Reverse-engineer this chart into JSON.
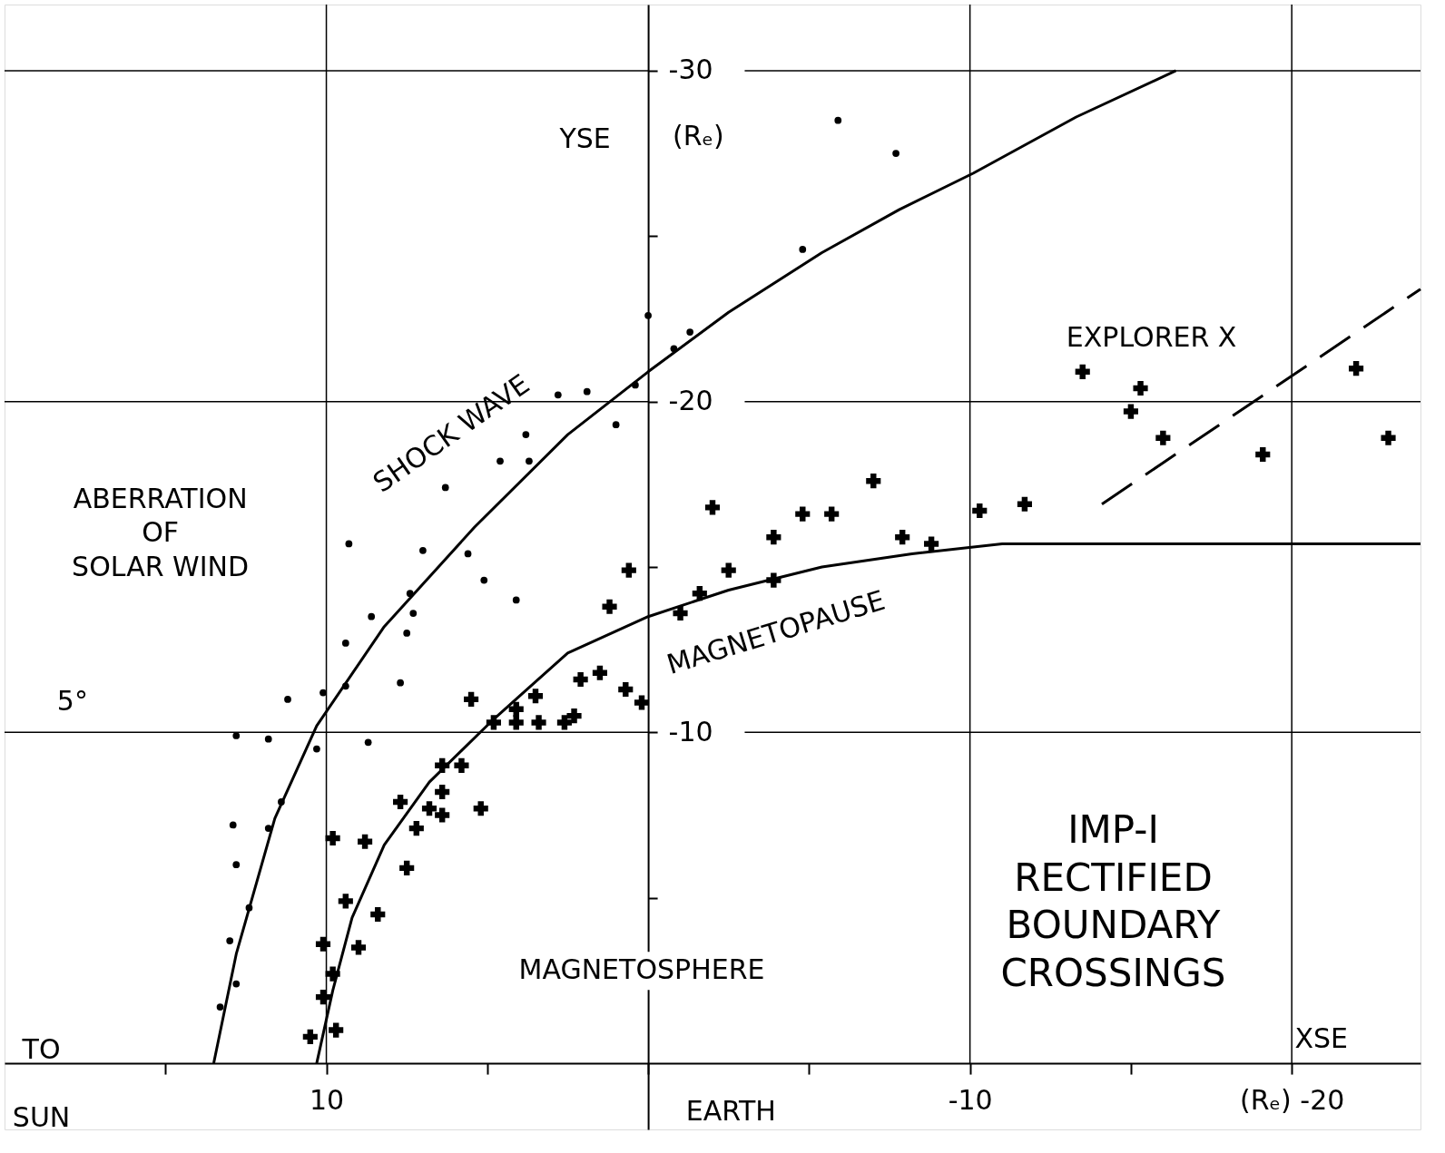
{
  "chart_data": {
    "type": "scatter",
    "xlabel": "XSE",
    "ylabel": "YSE",
    "xlim": [
      20,
      -24
    ],
    "ylim": [
      2,
      -32
    ],
    "xticks": [
      {
        "value": 15,
        "label": null
      },
      10,
      {
        "value": 5,
        "label": null
      },
      {
        "value": 0,
        "label": null
      },
      {
        "value": -5,
        "label": null
      },
      -10,
      {
        "value": -15,
        "label": null
      },
      {
        "value": -20,
        "label": "(Rₑ) -20"
      }
    ],
    "yticks": [
      -30,
      {
        "value": -25,
        "label": null
      },
      -20,
      {
        "value": -15,
        "label": null
      },
      -10,
      {
        "value": -5,
        "label": null
      }
    ],
    "grid": true,
    "series": [
      {
        "type": "scatter",
        "marker": "circle",
        "color": "#000000",
        "x": [
          -5.9,
          -7.7,
          -4.8,
          0,
          -1.3,
          -0.8,
          0.4,
          2.8,
          1.9,
          1.0,
          3.8,
          4.6,
          3.7,
          6.3,
          9.3,
          7.0,
          5.6,
          5.1,
          7.4,
          4.1,
          7.3,
          8.6,
          7.5,
          9.4,
          9.4,
          7.7,
          10.1,
          11.2,
          12.8,
          11.8,
          8.7,
          10.3,
          11.4,
          12.9,
          11.8,
          12.8,
          12.4,
          13.0,
          12.8,
          13.3
        ],
        "values": [
          -28.5,
          -27.5,
          -24.6,
          -22.6,
          -22.1,
          -21.6,
          -20.5,
          -20.2,
          -20.3,
          -19.3,
          -19.0,
          -18.2,
          -18.2,
          -17.4,
          -15.7,
          -15.5,
          -15.4,
          -14.6,
          -14.2,
          -14.0,
          -13.6,
          -13.5,
          -13.0,
          -12.7,
          -11.4,
          -11.5,
          -11.2,
          -11.0,
          -9.9,
          -9.8,
          -9.7,
          -9.5,
          -7.9,
          -7.2,
          -7.1,
          -6.0,
          -4.7,
          -3.7,
          -2.4,
          -1.7
        ]
      },
      {
        "type": "scatter",
        "marker": "cross",
        "color": "#000000",
        "x": [
          -13.5,
          -15.3,
          -15.0,
          -16.0,
          -19.1,
          -22.0,
          -23.0,
          -7.0,
          -11.7,
          -10.3,
          -2.0,
          -4.8,
          -5.7,
          -3.9,
          -7.9,
          -8.8,
          0.6,
          -2.5,
          -3.9,
          -1.6,
          1.2,
          -1.0,
          1.5,
          2.1,
          0.7,
          0.2,
          5.5,
          3.5,
          4.1,
          2.3,
          4.8,
          4.1,
          3.4,
          2.6,
          5.8,
          6.4,
          6.4,
          7.7,
          6.8,
          6.4,
          5.2,
          7.2,
          9.8,
          8.8,
          7.5,
          9.4,
          8.4,
          10.1,
          9.0,
          9.8,
          10.1,
          9.7,
          10.5
        ],
        "values": [
          -20.9,
          -20.4,
          -19.7,
          -18.9,
          -18.4,
          -21.0,
          -18.9,
          -17.6,
          -16.9,
          -16.7,
          -16.8,
          -16.6,
          -16.6,
          -15.9,
          -15.9,
          -15.7,
          -14.9,
          -14.9,
          -14.6,
          -14.2,
          -13.8,
          -13.6,
          -11.8,
          -11.6,
          -11.3,
          -10.9,
          -11.0,
          -11.1,
          -10.7,
          -10.5,
          -10.3,
          -10.3,
          -10.3,
          -10.3,
          -9.0,
          -9.0,
          -8.2,
          -7.9,
          -7.7,
          -7.5,
          -7.7,
          -7.1,
          -6.8,
          -6.7,
          -5.9,
          -4.9,
          -4.5,
          -3.6,
          -3.5,
          -2.7,
          -2.0,
          -1.0,
          -0.8
        ]
      },
      {
        "type": "line",
        "line_style": "solid",
        "color": "#000000",
        "x": [
          13.5,
          12.8,
          11.6,
          10.3,
          8.2,
          5.4,
          2.5,
          0,
          -2.5,
          -5.4,
          -7.8,
          -10.1,
          -13.3,
          -16.4
        ],
        "values": [
          0,
          -3.3,
          -7.4,
          -10.2,
          -13.2,
          -16.2,
          -19.0,
          -20.9,
          -22.7,
          -24.5,
          -25.8,
          -26.9,
          -28.6,
          -30.0
        ]
      },
      {
        "type": "line",
        "line_style": "solid",
        "color": "#000000",
        "x": [
          10.3,
          9.8,
          9.2,
          8.2,
          6.8,
          4.8,
          2.5,
          0,
          -2.5,
          -5.4,
          -8.2,
          -11.0,
          -15.3,
          -24
        ],
        "values": [
          0,
          -2.2,
          -4.4,
          -6.6,
          -8.5,
          -10.4,
          -12.4,
          -13.5,
          -14.3,
          -15.0,
          -15.4,
          -15.7,
          -15.7,
          -15.7
        ]
      },
      {
        "type": "line",
        "line_style": "dashed",
        "color": "#000000",
        "x": [
          -14.1,
          -24
        ],
        "values": [
          -16.9,
          -23.4
        ]
      }
    ],
    "annotations": [
      "SHOCK WAVE",
      "MAGNETOPAUSE",
      "EXPLORER Ⅹ",
      "ABERRATION\nOF\nSOLAR WIND",
      "5°",
      "MAGNETOSPHERE",
      "IMP-I\nRECTIFIED\nBOUNDARY\nCROSSINGS",
      "TO\nSUN",
      "EARTH",
      "(Rₑ)"
    ]
  }
}
